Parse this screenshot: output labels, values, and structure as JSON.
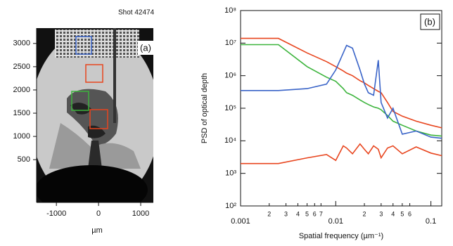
{
  "chart_data": [
    {
      "type": "image",
      "title": "Shot 42474",
      "panel_label": "(a)",
      "x_label": "µm",
      "xlim": [
        -1470,
        1300
      ],
      "ylim": [
        -420,
        3330
      ],
      "xticks": [
        -1000,
        0,
        1000
      ],
      "yticks": [
        500,
        1000,
        1500,
        2000,
        2500,
        3000
      ]
    },
    {
      "type": "line",
      "panel_label": "(b)",
      "x_label": "Spatial frequency (µm⁻¹)",
      "y_label": "PSD of optical depth",
      "x_scale": "log",
      "y_scale": "log",
      "xlim": [
        0.001,
        0.13
      ],
      "ylim": [
        100,
        100000000
      ],
      "xticks": [
        0.001,
        {
          "value": 0.002,
          "label": "2"
        },
        {
          "value": 0.003,
          "label": "3"
        },
        {
          "value": 0.004,
          "label": "4"
        },
        {
          "value": 0.005,
          "label": "5"
        },
        {
          "value": 0.006,
          "label": "6"
        },
        {
          "value": 0.007,
          "label": "7"
        },
        0.01,
        {
          "value": 0.02,
          "label": "2"
        },
        {
          "value": 0.03,
          "label": "3"
        },
        {
          "value": 0.04,
          "label": "4"
        },
        {
          "value": 0.05,
          "label": "5"
        },
        {
          "value": 0.06,
          "label": "6"
        },
        0.1
      ],
      "yticks": [
        {
          "value": 100,
          "label": "10²"
        },
        {
          "value": 1000,
          "label": "10³"
        },
        {
          "value": 10000,
          "label": "10⁴"
        },
        {
          "value": 100000,
          "label": "10⁵"
        },
        {
          "value": 1000000,
          "label": "10⁶"
        },
        {
          "value": 10000000,
          "label": "10⁷"
        },
        {
          "value": 100000000,
          "label": "10⁸"
        }
      ],
      "x": [
        0.001,
        0.0025,
        0.005,
        0.008,
        0.01,
        0.012,
        0.013,
        0.015,
        0.018,
        0.02,
        0.022,
        0.025,
        0.028,
        0.03,
        0.035,
        0.04,
        0.05,
        0.07,
        0.1,
        0.13
      ],
      "series": [
        {
          "color": "#e8451e",
          "values": [
            14000000,
            14000000,
            5000000,
            2700000,
            1900000,
            1400000,
            1200000,
            1000000,
            700000,
            600000,
            500000,
            400000,
            330000,
            300000,
            150000,
            80000,
            57000,
            40000,
            30000,
            25000
          ]
        },
        {
          "color": "#3cb43c",
          "values": [
            9000000,
            9000000,
            1900000,
            900000,
            670000,
            400000,
            300000,
            250000,
            180000,
            150000,
            130000,
            110000,
            100000,
            90000,
            60000,
            40000,
            30000,
            20000,
            15000,
            14000
          ]
        },
        {
          "color": "#3a64c8",
          "values": [
            350000,
            350000,
            400000,
            550000,
            1500000,
            5000000,
            8500000,
            7000000,
            1500000,
            560000,
            300000,
            250000,
            3000000,
            150000,
            50000,
            100000,
            16000,
            20000,
            13000,
            12000
          ]
        },
        {
          "color": "#e8451e",
          "values": [
            2000,
            2000,
            3000,
            3800,
            2500,
            7000,
            6000,
            4000,
            8000,
            5500,
            4000,
            7000,
            5500,
            3000,
            6000,
            7000,
            4000,
            6500,
            4200,
            3500
          ]
        }
      ]
    }
  ]
}
